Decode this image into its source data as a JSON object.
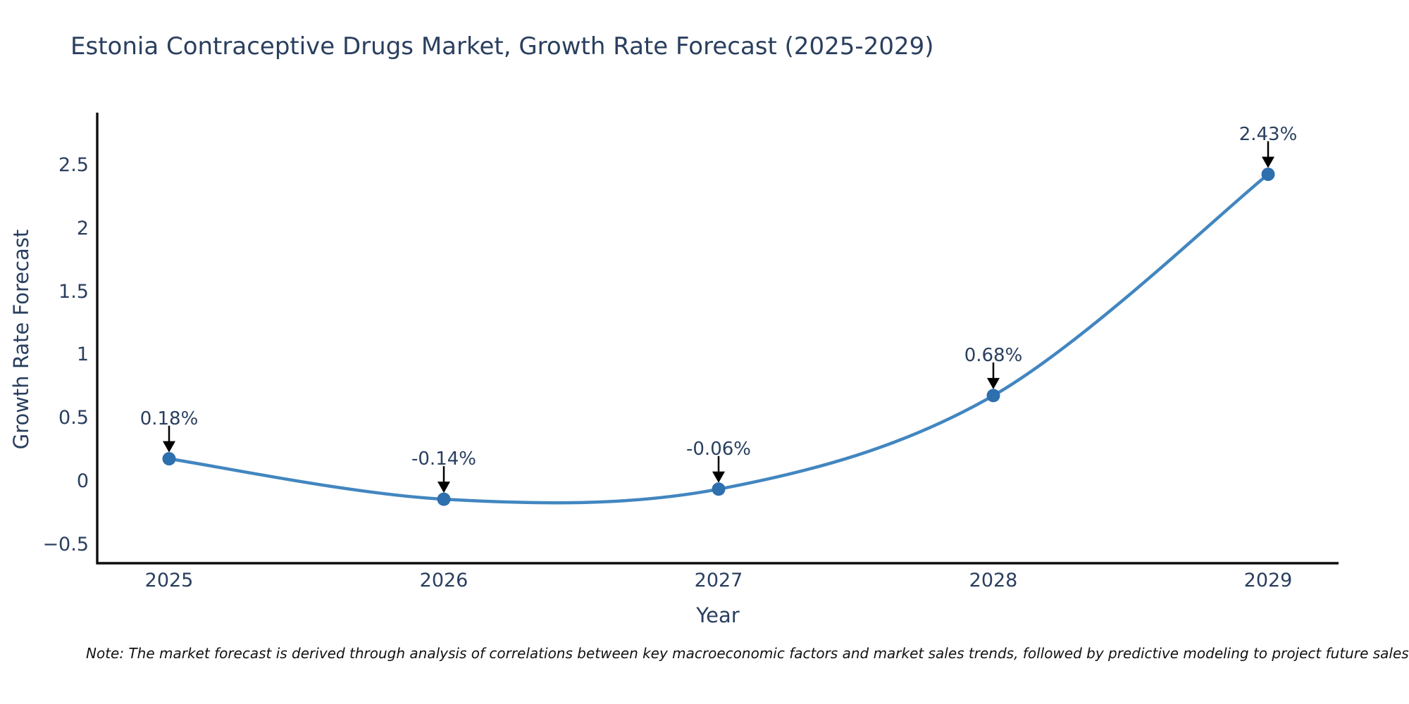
{
  "chart": {
    "title": "Estonia Contraceptive Drugs Market, Growth Rate Forecast (2025-2029)",
    "xlabel": "Year",
    "ylabel": "Growth Rate Forecast"
  },
  "note": "Note: The market forecast is derived through analysis of correlations between key macroeconomic factors and market sales trends, followed by predictive modeling to project future sales.",
  "chart_data": {
    "type": "line",
    "line_shape": "spline",
    "title": "Estonia Contraceptive Drugs Market, Growth Rate Forecast (2025-2029)",
    "xlabel": "Year",
    "ylabel": "Growth Rate Forecast",
    "x": [
      2025,
      2026,
      2027,
      2028,
      2029
    ],
    "y": [
      0.18,
      -0.14,
      -0.06,
      0.68,
      2.43
    ],
    "point_labels": [
      "0.18%",
      "-0.14%",
      "-0.06%",
      "0.68%",
      "2.43%"
    ],
    "yticks": [
      -0.5,
      0,
      0.5,
      1,
      1.5,
      2,
      2.5
    ],
    "ytick_labels": [
      "−0.5",
      "0",
      "0.5",
      "1",
      "1.5",
      "2",
      "2.5"
    ],
    "ylim": [
      -0.65,
      2.92
    ],
    "grid": false,
    "legend": "none",
    "colors": {
      "line": "#4286c0",
      "marker": "#2e6fad",
      "axis": "#0d0d0d",
      "text": "#2a3f5f",
      "arrow": "#000000"
    }
  }
}
